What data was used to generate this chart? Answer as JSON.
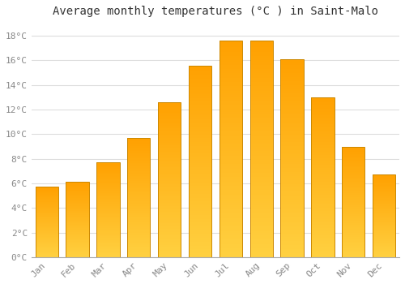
{
  "title": "Average monthly temperatures (°C ) in Saint-Malo",
  "months": [
    "Jan",
    "Feb",
    "Mar",
    "Apr",
    "May",
    "Jun",
    "Jul",
    "Aug",
    "Sep",
    "Oct",
    "Nov",
    "Dec"
  ],
  "values": [
    5.7,
    6.1,
    7.7,
    9.7,
    12.6,
    15.6,
    17.6,
    17.6,
    16.1,
    13.0,
    9.0,
    6.7
  ],
  "bar_color_top": "#FFA000",
  "bar_color_bottom": "#FFD040",
  "bar_border_color": "#CC8800",
  "background_color": "#ffffff",
  "grid_color": "#dddddd",
  "text_color": "#888888",
  "ylim": [
    0,
    19
  ],
  "yticks": [
    0,
    2,
    4,
    6,
    8,
    10,
    12,
    14,
    16,
    18
  ],
  "ytick_labels": [
    "0°C",
    "2°C",
    "4°C",
    "6°C",
    "8°C",
    "10°C",
    "12°C",
    "14°C",
    "16°C",
    "18°C"
  ],
  "title_fontsize": 10,
  "tick_fontsize": 8,
  "bar_width": 0.75,
  "num_grad": 100
}
